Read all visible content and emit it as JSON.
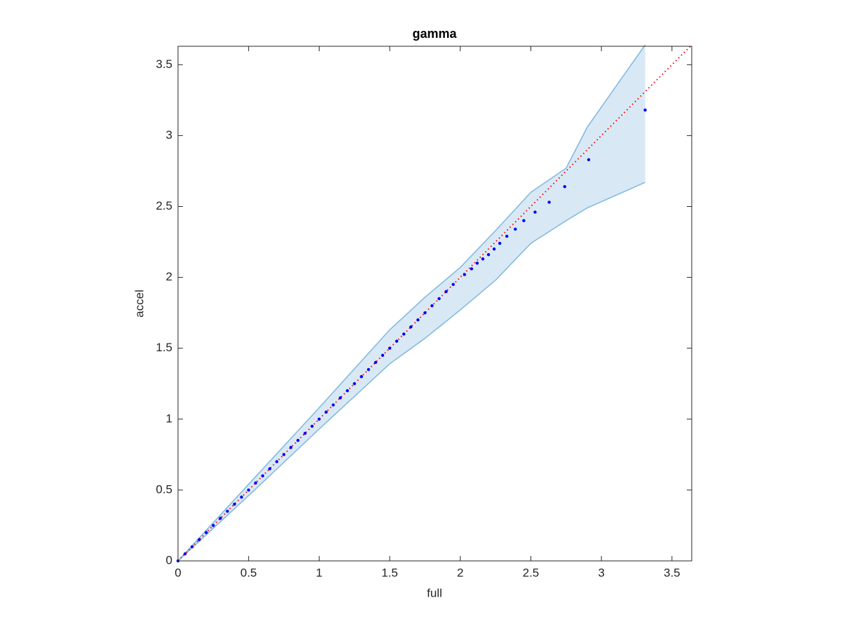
{
  "chart_data": {
    "type": "qq",
    "title": "gamma",
    "x_label": "full",
    "y_label": "accel",
    "xlim": [
      0,
      3.64
    ],
    "ylim": [
      0,
      3.63
    ],
    "xticks": [
      0,
      0.5,
      1,
      1.5,
      2,
      2.5,
      3,
      3.5
    ],
    "yticks": [
      0,
      0.5,
      1,
      1.5,
      2,
      2.5,
      3,
      3.5
    ],
    "points": {
      "color": "#0000ff",
      "x": [
        0,
        0.05,
        0.1,
        0.15,
        0.2,
        0.25,
        0.3,
        0.35,
        0.4,
        0.45,
        0.5,
        0.55,
        0.6,
        0.65,
        0.7,
        0.75,
        0.8,
        0.85,
        0.9,
        0.95,
        1,
        1.05,
        1.1,
        1.15,
        1.2,
        1.25,
        1.3,
        1.35,
        1.4,
        1.45,
        1.5,
        1.55,
        1.6,
        1.65,
        1.7,
        1.75,
        1.8,
        1.85,
        1.9,
        1.95,
        2.03,
        2.08,
        2.12,
        2.16,
        2.2,
        2.24,
        2.28,
        2.33,
        2.39,
        2.45,
        2.53,
        2.63,
        2.74,
        2.91,
        3.31
      ],
      "y": [
        0,
        0.05,
        0.1,
        0.15,
        0.2,
        0.25,
        0.3,
        0.35,
        0.4,
        0.45,
        0.5,
        0.55,
        0.6,
        0.65,
        0.7,
        0.75,
        0.8,
        0.85,
        0.9,
        0.95,
        1,
        1.05,
        1.1,
        1.15,
        1.2,
        1.25,
        1.3,
        1.35,
        1.4,
        1.45,
        1.5,
        1.55,
        1.6,
        1.65,
        1.7,
        1.75,
        1.8,
        1.85,
        1.9,
        1.95,
        2.02,
        2.06,
        2.1,
        2.13,
        2.16,
        2.2,
        2.24,
        2.29,
        2.34,
        2.4,
        2.46,
        2.53,
        2.64,
        2.83,
        3.18
      ]
    },
    "band": {
      "color": "#7fb7df",
      "x": [
        0,
        0.5,
        1,
        1.5,
        1.75,
        2,
        2.25,
        2.5,
        2.75,
        2.9,
        3.31
      ],
      "upper": [
        0,
        0.54,
        1.08,
        1.63,
        1.86,
        2.07,
        2.33,
        2.6,
        2.77,
        3.06,
        3.64
      ],
      "lower": [
        0,
        0.46,
        0.93,
        1.39,
        1.57,
        1.77,
        1.98,
        2.24,
        2.4,
        2.49,
        2.67
      ]
    },
    "reference_line": {
      "color": "#ff0000",
      "x": [
        0,
        3.64
      ],
      "y": [
        0,
        3.64
      ]
    }
  }
}
